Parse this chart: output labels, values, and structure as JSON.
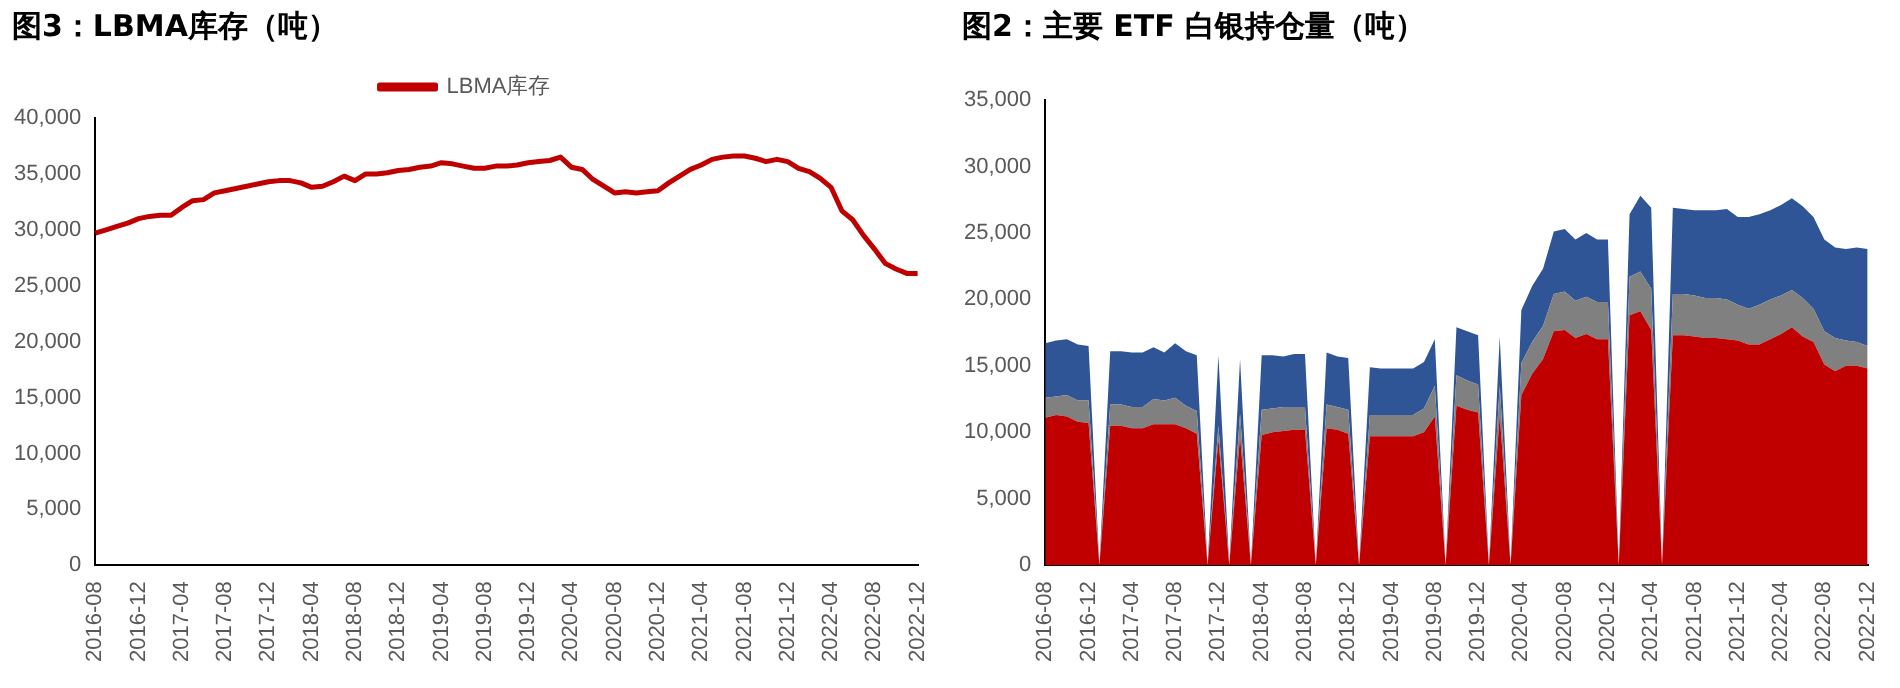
{
  "chart_data": [
    {
      "type": "line",
      "title": "图3：LBMA库存（吨）",
      "categories": [
        "2016-08",
        null,
        null,
        null,
        "2016-12",
        null,
        null,
        null,
        "2017-04",
        null,
        null,
        null,
        "2017-08",
        null,
        null,
        null,
        "2017-12",
        null,
        null,
        null,
        "2018-04",
        null,
        null,
        null,
        "2018-08",
        null,
        null,
        null,
        "2018-12",
        null,
        null,
        null,
        "2019-04",
        null,
        null,
        null,
        "2019-08",
        null,
        null,
        null,
        "2019-12",
        null,
        null,
        null,
        "2020-04",
        null,
        null,
        null,
        "2020-08",
        null,
        null,
        null,
        "2020-12",
        null,
        null,
        null,
        "2021-04",
        null,
        null,
        null,
        "2021-08",
        null,
        null,
        null,
        "2021-12",
        null,
        null,
        null,
        "2022-04",
        null,
        null,
        null,
        "2022-08",
        null,
        null,
        null,
        "2022-12"
      ],
      "series": [
        {
          "name": "LBMA库存",
          "color": "#c00000",
          "values": [
            29700,
            30000,
            30300,
            30600,
            31000,
            31200,
            31300,
            31300,
            32000,
            32600,
            32700,
            33300,
            33500,
            33700,
            33900,
            34100,
            34300,
            34400,
            34400,
            34200,
            33800,
            33900,
            34300,
            34800,
            34400,
            35000,
            35000,
            35100,
            35300,
            35400,
            35600,
            35700,
            36000,
            35900,
            35700,
            35500,
            35500,
            35700,
            35700,
            35800,
            36000,
            36100,
            36200,
            36500,
            35600,
            35400,
            34500,
            33900,
            33300,
            33400,
            33300,
            33400,
            33500,
            34200,
            34800,
            35400,
            35800,
            36300,
            36500,
            36600,
            36600,
            36400,
            36100,
            36300,
            36100,
            35500,
            35200,
            34600,
            33800,
            31700,
            30900,
            29500,
            28300,
            27000,
            26500,
            26100,
            26100
          ]
        }
      ],
      "ylim": [
        0,
        40000
      ],
      "yticks": [
        0,
        {
          "value": 5000,
          "label": "5,000"
        },
        {
          "value": 10000,
          "label": "10,000"
        },
        {
          "value": 15000,
          "label": "15,000"
        },
        {
          "value": 20000,
          "label": "20,000"
        },
        {
          "value": 25000,
          "label": "25,000"
        },
        {
          "value": 30000,
          "label": "30,000"
        },
        {
          "value": 35000,
          "label": "35,000"
        },
        {
          "value": 40000,
          "label": "40,000"
        }
      ],
      "grid": false,
      "legend": "top",
      "marker": "none",
      "line_style": "solid"
    },
    {
      "type": "area",
      "title": "图2：主要 ETF 白银持仓量（吨）",
      "stacked": true,
      "categories": [
        "2016-08",
        null,
        null,
        null,
        "2016-12",
        null,
        null,
        null,
        "2017-04",
        null,
        null,
        null,
        "2017-08",
        null,
        null,
        null,
        "2017-12",
        null,
        null,
        null,
        "2018-04",
        null,
        null,
        null,
        "2018-08",
        null,
        null,
        null,
        "2018-12",
        null,
        null,
        null,
        "2019-04",
        null,
        null,
        null,
        "2019-08",
        null,
        null,
        null,
        "2019-12",
        null,
        null,
        null,
        "2020-04",
        null,
        null,
        null,
        "2020-08",
        null,
        null,
        null,
        "2020-12",
        null,
        null,
        null,
        "2021-04",
        null,
        null,
        null,
        "2021-08",
        null,
        null,
        null,
        "2021-12",
        null,
        null,
        null,
        "2022-04",
        null,
        null,
        null,
        "2022-08",
        null,
        null,
        null,
        "2022-12"
      ],
      "series": [
        {
          "color": "#c00000",
          "values": [
            11100,
            11300,
            11200,
            10800,
            10700,
            0,
            10500,
            10500,
            10300,
            10300,
            10600,
            10600,
            10600,
            10300,
            9900,
            0,
            9500,
            0,
            9700,
            0,
            9800,
            10000,
            10100,
            10200,
            10200,
            0,
            10300,
            10200,
            9900,
            0,
            9700,
            9700,
            9700,
            9700,
            9700,
            10000,
            11200,
            0,
            12000,
            11700,
            11500,
            0,
            11300,
            0,
            12800,
            14400,
            15500,
            17600,
            17700,
            17100,
            17400,
            17000,
            17000,
            0,
            18800,
            19100,
            17700,
            0,
            17300,
            17300,
            17200,
            17100,
            17100,
            17000,
            16900,
            16600,
            16600,
            17000,
            17400,
            17900,
            17200,
            16800,
            15100,
            14600,
            15000,
            15000,
            14800
          ]
        },
        {
          "color": "#808080",
          "values": [
            1500,
            1400,
            1600,
            1600,
            1700,
            0,
            1600,
            1600,
            1600,
            1600,
            1900,
            1800,
            2000,
            1700,
            1700,
            0,
            1000,
            0,
            1700,
            0,
            1900,
            1800,
            1800,
            1700,
            1700,
            0,
            1800,
            1700,
            1800,
            0,
            1600,
            1600,
            1600,
            1600,
            1600,
            1800,
            2300,
            0,
            2300,
            2200,
            2100,
            0,
            2200,
            0,
            2400,
            2400,
            2500,
            2800,
            2900,
            2800,
            2800,
            2800,
            2800,
            0,
            2900,
            3000,
            3100,
            0,
            3100,
            3100,
            3100,
            3000,
            3000,
            3000,
            2700,
            2700,
            3000,
            3000,
            2900,
            2800,
            2900,
            2500,
            2500,
            2500,
            1900,
            1800,
            1700
          ]
        },
        {
          "color": "#2f5597",
          "values": [
            4100,
            4200,
            4200,
            4200,
            4100,
            0,
            4000,
            4000,
            4100,
            4100,
            3900,
            3600,
            4100,
            4100,
            4200,
            0,
            5300,
            0,
            4100,
            0,
            4100,
            4000,
            3800,
            4000,
            4000,
            0,
            3900,
            3800,
            3900,
            0,
            3600,
            3500,
            3500,
            3500,
            3500,
            3500,
            3500,
            0,
            3600,
            3700,
            3700,
            0,
            3700,
            0,
            4000,
            4200,
            4300,
            4700,
            4700,
            4600,
            4800,
            4700,
            4700,
            0,
            4700,
            5700,
            6100,
            0,
            6500,
            6400,
            6400,
            6600,
            6600,
            6800,
            6600,
            6900,
            6800,
            6700,
            6800,
            6900,
            6900,
            6900,
            6900,
            6800,
            6900,
            7100,
            7300
          ]
        }
      ],
      "ylim": [
        0,
        35000
      ],
      "yticks": [
        0,
        {
          "value": 5000,
          "label": "5,000"
        },
        {
          "value": 10000,
          "label": "10,000"
        },
        {
          "value": 15000,
          "label": "15,000"
        },
        {
          "value": 20000,
          "label": "20,000"
        },
        {
          "value": 25000,
          "label": "25,000"
        },
        {
          "value": 30000,
          "label": "30,000"
        },
        {
          "value": 35000,
          "label": "35,000"
        }
      ],
      "grid": false,
      "legend": false,
      "marker": "none"
    }
  ]
}
